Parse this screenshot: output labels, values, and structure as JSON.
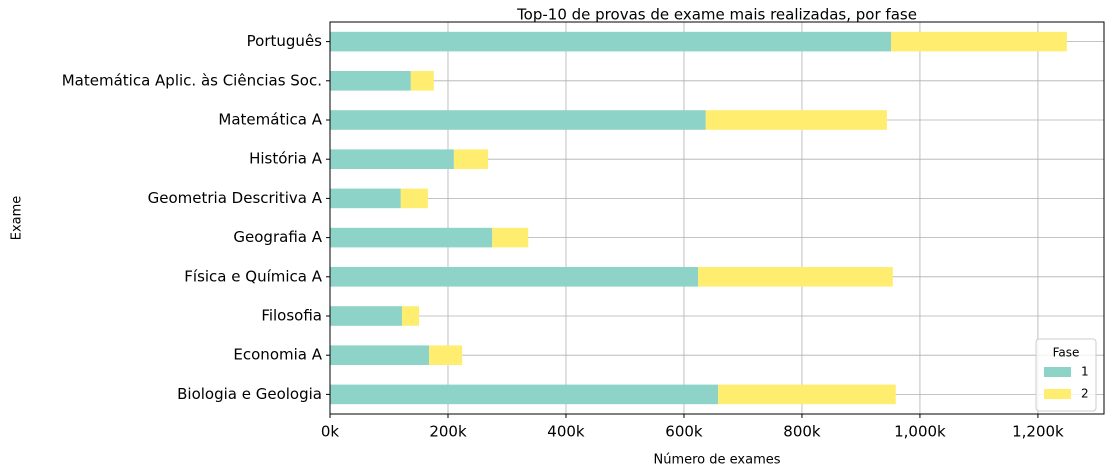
{
  "chart_data": {
    "type": "stacked-barh",
    "title": "Top-10 de provas de exame mais realizadas, por fase",
    "xlabel": "Número de exames",
    "ylabel": "Exame",
    "categories": [
      "Biologia e Geologia",
      "Economia A",
      "Filosofia",
      "Física e Química A",
      "Geografia A",
      "Geometria Descritiva A",
      "História A",
      "Matemática A",
      "Matemática Aplic. às Ciências Soc.",
      "Português"
    ],
    "series": [
      {
        "name": "1",
        "color": "#8dd3c7",
        "values": [
          658000,
          168000,
          122000,
          624000,
          275000,
          120000,
          210000,
          637000,
          137000,
          951000
        ]
      },
      {
        "name": "2",
        "color": "#ffed6f",
        "values": [
          301000,
          56000,
          29000,
          330000,
          61000,
          46000,
          58000,
          307000,
          39000,
          298000
        ]
      }
    ],
    "xlim": [
      0,
      1312000
    ],
    "xticks": [
      {
        "value": 0,
        "label": "0k"
      },
      {
        "value": 200000,
        "label": "200k"
      },
      {
        "value": 400000,
        "label": "400k"
      },
      {
        "value": 600000,
        "label": "600k"
      },
      {
        "value": 800000,
        "label": "800k"
      },
      {
        "value": 1000000,
        "label": "1,000k"
      },
      {
        "value": 1200000,
        "label": "1,200k"
      }
    ],
    "grid": true,
    "legend_title": "Fase",
    "legend_position": "lower right"
  }
}
